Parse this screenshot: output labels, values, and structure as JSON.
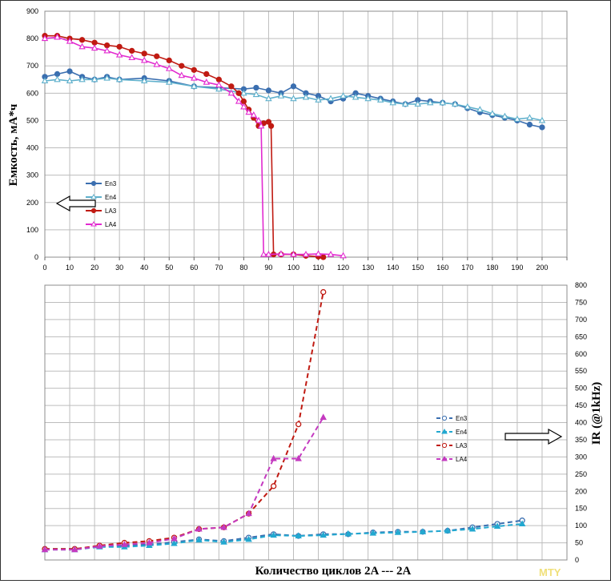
{
  "chart_data": [
    {
      "type": "line",
      "ylabel": "Емкость, мА*ч",
      "xlim": [
        0,
        210
      ],
      "ylim": [
        0,
        900
      ],
      "x_ticks": [
        "0",
        "10",
        "20",
        "30",
        "40",
        "50",
        "60",
        "70",
        "80",
        "90",
        "100",
        "110",
        "120",
        "130",
        "140",
        "150",
        "160",
        "170",
        "180",
        "190",
        "200",
        ""
      ],
      "y_ticks": [
        "0",
        "100",
        "200",
        "300",
        "400",
        "500",
        "600",
        "700",
        "800",
        "900"
      ],
      "grid": true,
      "legend_position": "left",
      "annotation": "arrow pointing left",
      "series": [
        {
          "name": "En3",
          "color": "#3b6fb0",
          "marker": "circle",
          "dash": false,
          "x": [
            0,
            5,
            10,
            15,
            20,
            25,
            30,
            40,
            50,
            60,
            70,
            80,
            85,
            90,
            95,
            100,
            105,
            110,
            115,
            120,
            125,
            130,
            135,
            140,
            145,
            150,
            155,
            160,
            165,
            170,
            175,
            180,
            185,
            190,
            195,
            200
          ],
          "y": [
            660,
            670,
            680,
            660,
            650,
            660,
            650,
            655,
            645,
            625,
            620,
            615,
            620,
            610,
            600,
            625,
            600,
            590,
            570,
            580,
            600,
            590,
            580,
            570,
            560,
            575,
            570,
            565,
            560,
            545,
            530,
            520,
            510,
            500,
            485,
            475
          ]
        },
        {
          "name": "En4",
          "color": "#5fb0cc",
          "marker": "triangle",
          "dash": false,
          "x": [
            0,
            5,
            10,
            15,
            20,
            25,
            30,
            40,
            50,
            60,
            70,
            80,
            85,
            90,
            95,
            100,
            105,
            110,
            115,
            120,
            125,
            130,
            135,
            140,
            145,
            150,
            155,
            160,
            165,
            170,
            175,
            180,
            185,
            190,
            195,
            200
          ],
          "y": [
            645,
            650,
            645,
            650,
            650,
            655,
            650,
            645,
            640,
            625,
            615,
            600,
            595,
            580,
            590,
            580,
            585,
            575,
            580,
            590,
            585,
            580,
            575,
            565,
            560,
            560,
            565,
            565,
            560,
            550,
            540,
            525,
            515,
            505,
            510,
            500
          ]
        },
        {
          "name": "LA3",
          "color": "#c01a12",
          "marker": "circle",
          "dash": false,
          "x": [
            0,
            5,
            10,
            15,
            20,
            25,
            30,
            35,
            40,
            45,
            50,
            55,
            60,
            65,
            70,
            75,
            78,
            80,
            82,
            84,
            86,
            88,
            90,
            91,
            92,
            95,
            100,
            105,
            110,
            112
          ],
          "y": [
            810,
            810,
            800,
            795,
            785,
            775,
            770,
            755,
            745,
            735,
            720,
            700,
            685,
            670,
            650,
            625,
            600,
            570,
            540,
            510,
            480,
            490,
            495,
            480,
            10,
            10,
            10,
            5,
            2,
            0
          ]
        },
        {
          "name": "LA4",
          "color": "#e22ad0",
          "marker": "triangle",
          "dash": false,
          "x": [
            0,
            5,
            10,
            15,
            20,
            25,
            30,
            35,
            40,
            45,
            50,
            55,
            60,
            65,
            70,
            75,
            78,
            80,
            82,
            84,
            86,
            87,
            88,
            90,
            95,
            100,
            105,
            110,
            115,
            120
          ],
          "y": [
            800,
            805,
            790,
            770,
            765,
            755,
            740,
            730,
            720,
            705,
            690,
            665,
            655,
            640,
            630,
            600,
            570,
            550,
            530,
            520,
            500,
            480,
            10,
            10,
            12,
            10,
            10,
            12,
            10,
            5
          ]
        }
      ]
    },
    {
      "type": "line",
      "ylabel": "IR (@1kHz)",
      "xlabel": "Количество циклов  2A --- 2A",
      "xlim": [
        0,
        210
      ],
      "ylim": [
        0,
        800
      ],
      "y_ticks": [
        "0",
        "50",
        "100",
        "150",
        "200",
        "250",
        "300",
        "350",
        "400",
        "450",
        "500",
        "550",
        "600",
        "650",
        "700",
        "750",
        "800"
      ],
      "grid": true,
      "legend_position": "right",
      "annotation": "arrow pointing right",
      "series": [
        {
          "name": "En3",
          "color": "#3b6fb0",
          "marker": "circle",
          "dash": true,
          "x": [
            0,
            12,
            22,
            32,
            42,
            52,
            62,
            72,
            82,
            92,
            102,
            112,
            122,
            132,
            142,
            152,
            162,
            172,
            182,
            192
          ],
          "y": [
            32,
            32,
            40,
            42,
            45,
            52,
            60,
            55,
            65,
            75,
            70,
            75,
            75,
            80,
            82,
            82,
            85,
            95,
            105,
            115
          ]
        },
        {
          "name": "En4",
          "color": "#22a8d0",
          "marker": "triangle",
          "dash": true,
          "x": [
            0,
            12,
            22,
            32,
            42,
            52,
            62,
            72,
            82,
            92,
            102,
            112,
            122,
            132,
            142,
            152,
            162,
            172,
            182,
            192
          ],
          "y": [
            30,
            30,
            38,
            38,
            42,
            48,
            58,
            52,
            60,
            72,
            70,
            72,
            76,
            78,
            80,
            82,
            85,
            90,
            98,
            105
          ]
        },
        {
          "name": "LA3",
          "color": "#c01a12",
          "marker": "circle",
          "dash": true,
          "x": [
            0,
            12,
            22,
            32,
            42,
            52,
            62,
            72,
            82,
            92,
            102,
            112
          ],
          "y": [
            32,
            32,
            42,
            50,
            55,
            65,
            90,
            95,
            135,
            215,
            395,
            780
          ]
        },
        {
          "name": "LA4",
          "color": "#c43ac0",
          "marker": "triangle",
          "dash": true,
          "x": [
            0,
            12,
            22,
            32,
            42,
            52,
            62,
            72,
            82,
            92,
            102,
            112
          ],
          "y": [
            30,
            30,
            40,
            45,
            50,
            62,
            90,
            95,
            135,
            295,
            295,
            415
          ]
        }
      ]
    }
  ],
  "watermark": "MTY"
}
